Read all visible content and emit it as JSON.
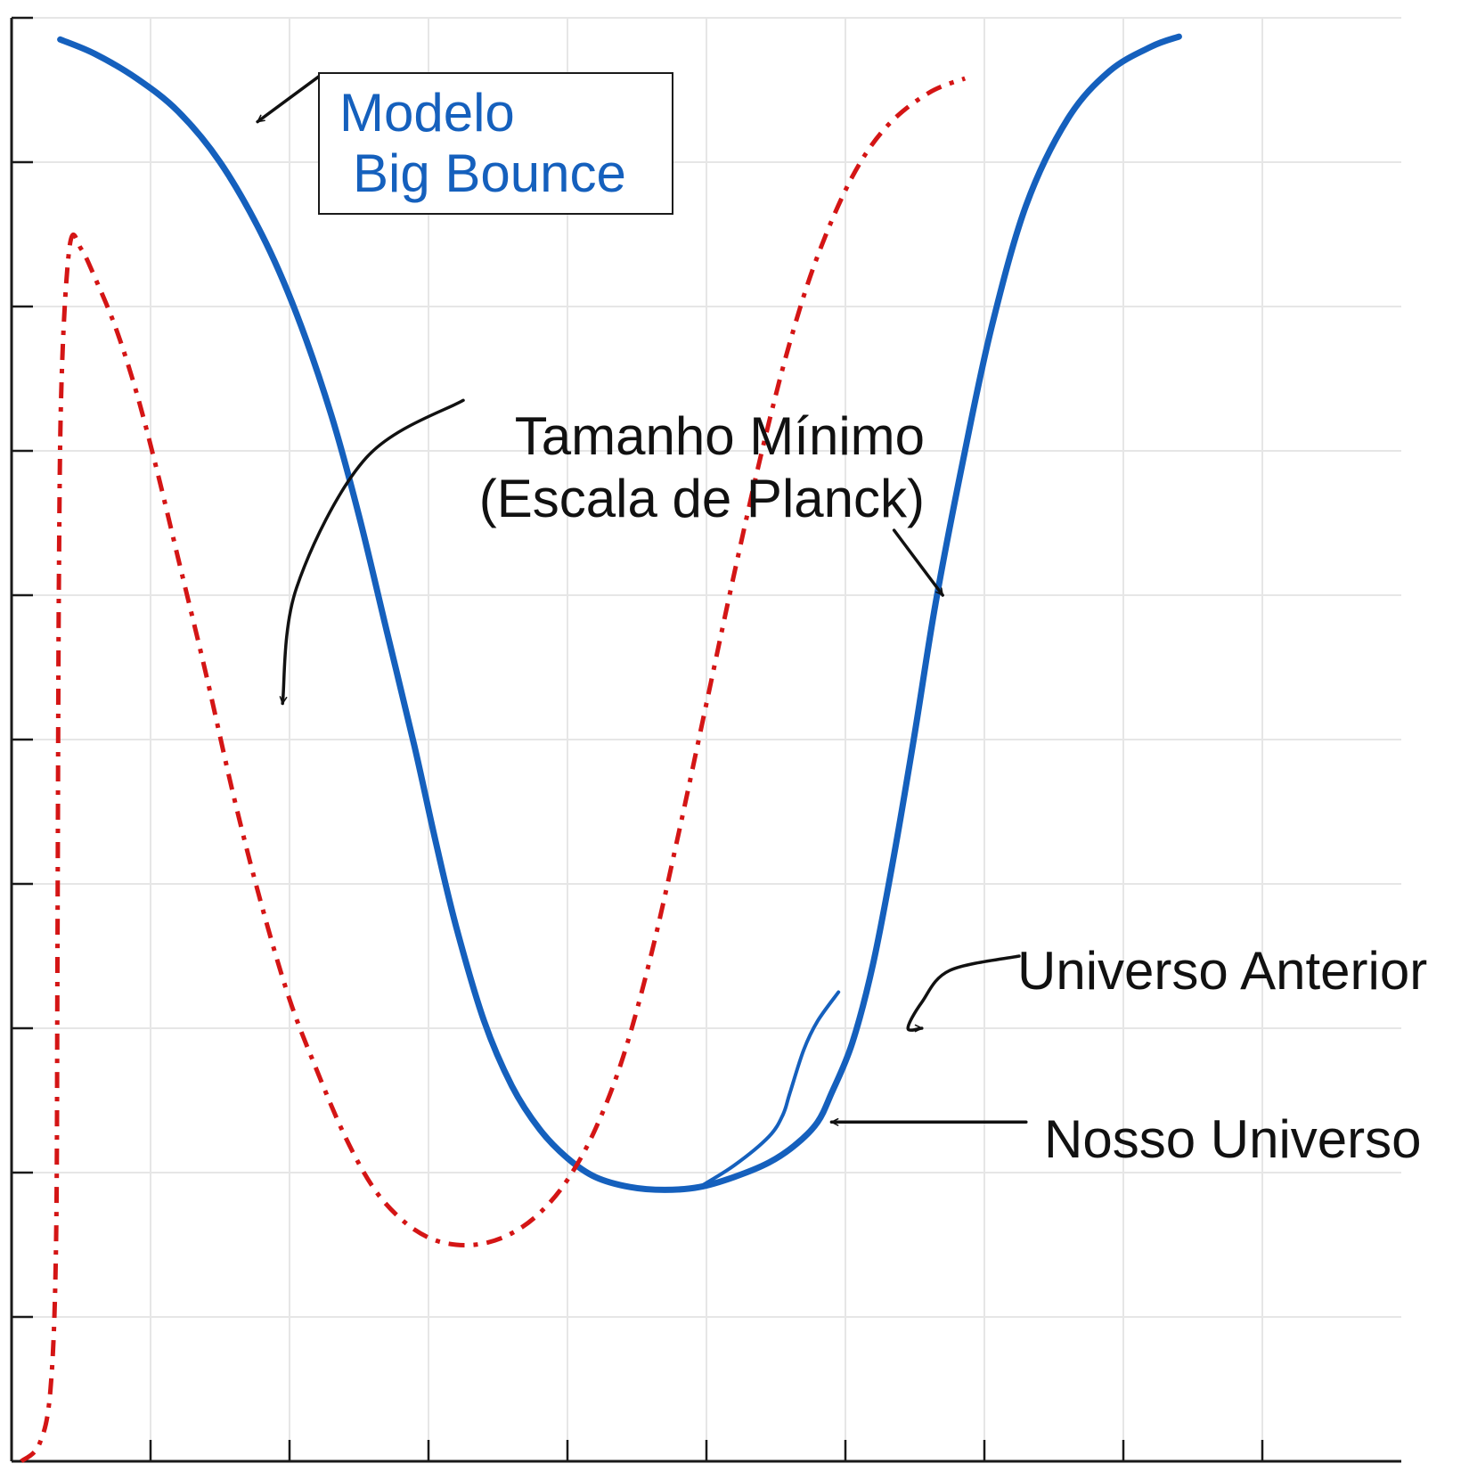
{
  "chart_data": {
    "type": "line",
    "title": "",
    "xlabel": "",
    "ylabel": "",
    "xlim": [
      0,
      10
    ],
    "ylim": [
      0,
      10
    ],
    "x_ticks": [
      1,
      2,
      3,
      4,
      5,
      6,
      7,
      8,
      9
    ],
    "y_ticks": [
      1,
      2,
      3,
      4,
      5,
      6,
      7,
      8,
      9,
      10
    ],
    "grid": true,
    "legend": {
      "placement": "top-left",
      "entries": [
        "Modelo",
        "Big Bounce"
      ]
    },
    "series": [
      {
        "id": "big_bounce",
        "color": "#1560bd",
        "style": "solid",
        "points": [
          [
            0.35,
            9.85
          ],
          [
            0.6,
            9.75
          ],
          [
            0.9,
            9.58
          ],
          [
            1.2,
            9.35
          ],
          [
            1.5,
            9.0
          ],
          [
            1.8,
            8.5
          ],
          [
            2.05,
            7.95
          ],
          [
            2.3,
            7.25
          ],
          [
            2.5,
            6.55
          ],
          [
            2.7,
            5.75
          ],
          [
            2.9,
            4.95
          ],
          [
            3.05,
            4.3
          ],
          [
            3.2,
            3.7
          ],
          [
            3.4,
            3.05
          ],
          [
            3.6,
            2.6
          ],
          [
            3.8,
            2.3
          ],
          [
            4.0,
            2.1
          ],
          [
            4.2,
            1.97
          ],
          [
            4.45,
            1.9
          ],
          [
            4.7,
            1.88
          ],
          [
            4.95,
            1.9
          ],
          [
            5.2,
            1.97
          ],
          [
            5.45,
            2.07
          ],
          [
            5.65,
            2.2
          ],
          [
            5.8,
            2.35
          ],
          [
            5.9,
            2.55
          ],
          [
            6.05,
            2.9
          ],
          [
            6.2,
            3.45
          ],
          [
            6.35,
            4.2
          ],
          [
            6.5,
            5.05
          ],
          [
            6.65,
            5.95
          ],
          [
            6.85,
            6.95
          ],
          [
            7.05,
            7.85
          ],
          [
            7.3,
            8.7
          ],
          [
            7.6,
            9.3
          ],
          [
            7.9,
            9.63
          ],
          [
            8.2,
            9.8
          ],
          [
            8.4,
            9.87
          ]
        ]
      },
      {
        "id": "universo_anterior",
        "color": "#d41515",
        "style": "dash-dot",
        "points": [
          [
            0.07,
            0.0
          ],
          [
            0.2,
            0.12
          ],
          [
            0.28,
            0.5
          ],
          [
            0.32,
            1.5
          ],
          [
            0.33,
            3.5
          ],
          [
            0.34,
            6.0
          ],
          [
            0.36,
            7.5
          ],
          [
            0.42,
            8.43
          ],
          [
            0.5,
            8.4
          ],
          [
            0.6,
            8.2
          ],
          [
            0.75,
            7.85
          ],
          [
            0.9,
            7.4
          ],
          [
            1.05,
            6.85
          ],
          [
            1.2,
            6.25
          ],
          [
            1.4,
            5.45
          ],
          [
            1.6,
            4.6
          ],
          [
            1.8,
            3.85
          ],
          [
            2.0,
            3.2
          ],
          [
            2.2,
            2.7
          ],
          [
            2.4,
            2.25
          ],
          [
            2.6,
            1.9
          ],
          [
            2.8,
            1.68
          ],
          [
            3.0,
            1.55
          ],
          [
            3.2,
            1.5
          ],
          [
            3.4,
            1.51
          ],
          [
            3.6,
            1.58
          ],
          [
            3.8,
            1.72
          ],
          [
            4.0,
            1.95
          ],
          [
            4.2,
            2.3
          ],
          [
            4.4,
            2.8
          ],
          [
            4.6,
            3.5
          ],
          [
            4.8,
            4.35
          ],
          [
            5.0,
            5.25
          ],
          [
            5.2,
            6.15
          ],
          [
            5.4,
            7.0
          ],
          [
            5.6,
            7.75
          ],
          [
            5.8,
            8.35
          ],
          [
            6.05,
            8.9
          ],
          [
            6.3,
            9.25
          ],
          [
            6.6,
            9.48
          ],
          [
            6.86,
            9.58
          ]
        ]
      },
      {
        "id": "nosso_universo",
        "color": "#1560bd",
        "style": "solid",
        "points": [
          [
            4.95,
            1.9
          ],
          [
            5.2,
            2.05
          ],
          [
            5.45,
            2.25
          ],
          [
            5.55,
            2.4
          ],
          [
            5.6,
            2.55
          ],
          [
            5.7,
            2.85
          ],
          [
            5.8,
            3.05
          ],
          [
            5.95,
            3.25
          ]
        ]
      }
    ],
    "annotations": [
      {
        "id": "tamanho-minimo",
        "lines": [
          "Tamanho Mínimo",
          "(Escala de Planck)"
        ],
        "arrows": [
          {
            "path": [
              [
                3.25,
                7.35
              ],
              [
                2.55,
                6.95
              ],
              [
                2.05,
                6.05
              ],
              [
                1.95,
                5.25
              ]
            ]
          },
          {
            "path": [
              [
                6.35,
                6.45
              ],
              [
                6.7,
                6.0
              ]
            ]
          }
        ]
      },
      {
        "id": "universo-anterior-label",
        "lines": [
          "Universo Anterior"
        ],
        "arrows": [
          {
            "path": [
              [
                7.25,
                3.5
              ],
              [
                6.75,
                3.4
              ],
              [
                6.55,
                3.18
              ],
              [
                6.45,
                3.0
              ],
              [
                6.55,
                3.0
              ]
            ]
          }
        ]
      },
      {
        "id": "nosso-universo-label",
        "lines": [
          "Nosso Universo"
        ],
        "arrows": [
          {
            "path": [
              [
                7.3,
                2.35
              ],
              [
                5.9,
                2.35
              ]
            ]
          }
        ]
      },
      {
        "id": "modelo-arrow",
        "lines": [],
        "arrows": [
          {
            "path": [
              [
                2.22,
                9.6
              ],
              [
                1.77,
                9.28
              ]
            ]
          }
        ]
      }
    ]
  }
}
